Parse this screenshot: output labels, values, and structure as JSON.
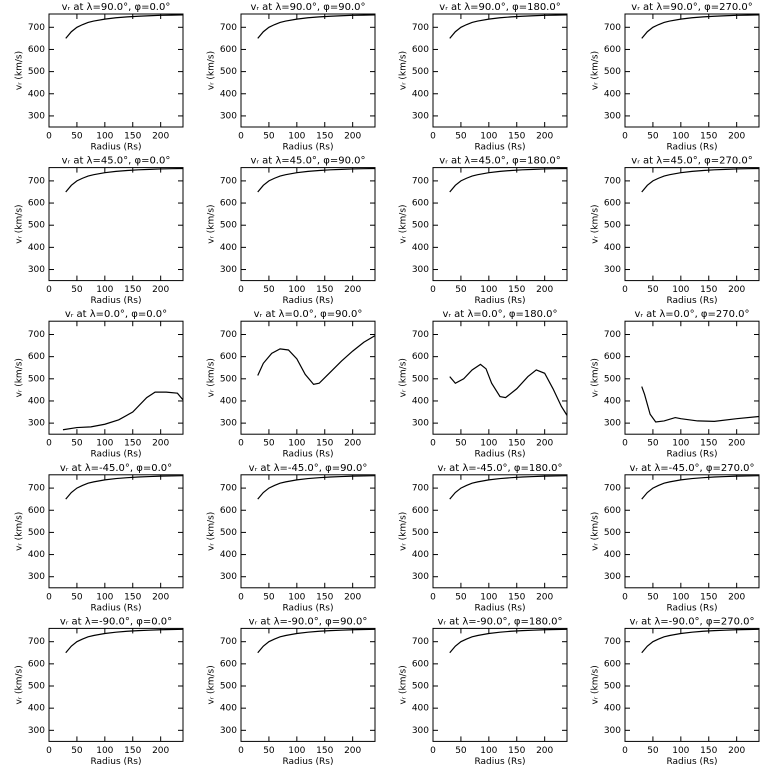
{
  "chart_data": [
    {
      "type": "line",
      "title": "vᵣ at λ=90.0°, φ=0.0°",
      "xlabel": "Radius (Rs)",
      "ylabel": "vᵣ (km/s)",
      "x": [
        30,
        40,
        50,
        60,
        70,
        80,
        100,
        120,
        140,
        160,
        180,
        200,
        220,
        240
      ],
      "values": [
        650,
        680,
        700,
        712,
        722,
        728,
        737,
        743,
        747,
        750,
        752,
        754,
        755,
        756
      ],
      "xlim": [
        0,
        240
      ],
      "ylim": [
        250,
        760
      ],
      "xticks": [
        0,
        50,
        100,
        150,
        200
      ],
      "yticks": [
        300,
        400,
        500,
        600,
        700
      ],
      "color": "#000000"
    },
    {
      "type": "line",
      "title": "vᵣ at λ=90.0°, φ=90.0°",
      "xlabel": "Radius (Rs)",
      "ylabel": "vᵣ (km/s)",
      "x": [
        30,
        40,
        50,
        60,
        70,
        80,
        100,
        120,
        140,
        160,
        180,
        200,
        220,
        240
      ],
      "values": [
        650,
        680,
        700,
        712,
        722,
        728,
        737,
        743,
        747,
        750,
        752,
        754,
        755,
        756
      ],
      "xlim": [
        0,
        240
      ],
      "ylim": [
        250,
        760
      ],
      "xticks": [
        0,
        50,
        100,
        150,
        200
      ],
      "yticks": [
        300,
        400,
        500,
        600,
        700
      ],
      "color": "#000000"
    },
    {
      "type": "line",
      "title": "vᵣ at λ=90.0°, φ=180.0°",
      "xlabel": "Radius (Rs)",
      "ylabel": "vᵣ (km/s)",
      "x": [
        30,
        40,
        50,
        60,
        70,
        80,
        100,
        120,
        140,
        160,
        180,
        200,
        220,
        240
      ],
      "values": [
        650,
        680,
        700,
        712,
        722,
        728,
        737,
        743,
        747,
        750,
        752,
        754,
        755,
        756
      ],
      "xlim": [
        0,
        240
      ],
      "ylim": [
        250,
        760
      ],
      "xticks": [
        0,
        50,
        100,
        150,
        200
      ],
      "yticks": [
        300,
        400,
        500,
        600,
        700
      ],
      "color": "#000000"
    },
    {
      "type": "line",
      "title": "vᵣ at λ=90.0°, φ=270.0°",
      "xlabel": "Radius (Rs)",
      "ylabel": "vᵣ (km/s)",
      "x": [
        30,
        40,
        50,
        60,
        70,
        80,
        100,
        120,
        140,
        160,
        180,
        200,
        220,
        240
      ],
      "values": [
        650,
        680,
        700,
        712,
        722,
        728,
        737,
        743,
        747,
        750,
        752,
        754,
        755,
        756
      ],
      "xlim": [
        0,
        240
      ],
      "ylim": [
        250,
        760
      ],
      "xticks": [
        0,
        50,
        100,
        150,
        200
      ],
      "yticks": [
        300,
        400,
        500,
        600,
        700
      ],
      "color": "#000000"
    },
    {
      "type": "line",
      "title": "vᵣ at λ=45.0°, φ=0.0°",
      "xlabel": "Radius (Rs)",
      "ylabel": "vᵣ (km/s)",
      "x": [
        30,
        40,
        50,
        60,
        70,
        80,
        100,
        120,
        140,
        160,
        180,
        200,
        220,
        240
      ],
      "values": [
        650,
        680,
        700,
        712,
        722,
        728,
        737,
        743,
        747,
        750,
        752,
        754,
        755,
        756
      ],
      "xlim": [
        0,
        240
      ],
      "ylim": [
        250,
        760
      ],
      "xticks": [
        0,
        50,
        100,
        150,
        200
      ],
      "yticks": [
        300,
        400,
        500,
        600,
        700
      ],
      "color": "#000000"
    },
    {
      "type": "line",
      "title": "vᵣ at λ=45.0°, φ=90.0°",
      "xlabel": "Radius (Rs)",
      "ylabel": "vᵣ (km/s)",
      "x": [
        30,
        40,
        50,
        60,
        70,
        80,
        100,
        120,
        140,
        160,
        180,
        200,
        220,
        240
      ],
      "values": [
        650,
        680,
        700,
        712,
        722,
        728,
        737,
        743,
        747,
        750,
        752,
        754,
        755,
        756
      ],
      "xlim": [
        0,
        240
      ],
      "ylim": [
        250,
        760
      ],
      "xticks": [
        0,
        50,
        100,
        150,
        200
      ],
      "yticks": [
        300,
        400,
        500,
        600,
        700
      ],
      "color": "#000000"
    },
    {
      "type": "line",
      "title": "vᵣ at λ=45.0°, φ=180.0°",
      "xlabel": "Radius (Rs)",
      "ylabel": "vᵣ (km/s)",
      "x": [
        30,
        40,
        50,
        60,
        70,
        80,
        100,
        120,
        140,
        160,
        180,
        200,
        220,
        240
      ],
      "values": [
        650,
        680,
        700,
        712,
        722,
        728,
        737,
        743,
        747,
        750,
        752,
        754,
        755,
        756
      ],
      "xlim": [
        0,
        240
      ],
      "ylim": [
        250,
        760
      ],
      "xticks": [
        0,
        50,
        100,
        150,
        200
      ],
      "yticks": [
        300,
        400,
        500,
        600,
        700
      ],
      "color": "#000000"
    },
    {
      "type": "line",
      "title": "vᵣ at λ=45.0°, φ=270.0°",
      "xlabel": "Radius (Rs)",
      "ylabel": "vᵣ (km/s)",
      "x": [
        30,
        40,
        50,
        60,
        70,
        80,
        100,
        120,
        140,
        160,
        180,
        200,
        220,
        240
      ],
      "values": [
        650,
        680,
        700,
        712,
        722,
        728,
        737,
        743,
        747,
        750,
        752,
        754,
        755,
        756
      ],
      "xlim": [
        0,
        240
      ],
      "ylim": [
        250,
        760
      ],
      "xticks": [
        0,
        50,
        100,
        150,
        200
      ],
      "yticks": [
        300,
        400,
        500,
        600,
        700
      ],
      "color": "#000000"
    },
    {
      "type": "line",
      "title": "vᵣ at λ=0.0°, φ=0.0°",
      "xlabel": "Radius (Rs)",
      "ylabel": "vᵣ (km/s)",
      "x": [
        25,
        50,
        75,
        100,
        125,
        150,
        175,
        190,
        210,
        230,
        240
      ],
      "values": [
        270,
        280,
        283,
        295,
        315,
        350,
        415,
        440,
        440,
        435,
        405
      ],
      "xlim": [
        0,
        240
      ],
      "ylim": [
        250,
        760
      ],
      "xticks": [
        0,
        50,
        100,
        150,
        200
      ],
      "yticks": [
        300,
        400,
        500,
        600,
        700
      ],
      "color": "#000000"
    },
    {
      "type": "line",
      "title": "vᵣ at λ=0.0°, φ=90.0°",
      "xlabel": "Radius (Rs)",
      "ylabel": "vᵣ (km/s)",
      "x": [
        30,
        40,
        55,
        70,
        85,
        100,
        115,
        130,
        140,
        160,
        180,
        200,
        220,
        240
      ],
      "values": [
        515,
        570,
        615,
        635,
        630,
        590,
        520,
        475,
        480,
        530,
        580,
        625,
        665,
        695
      ],
      "xlim": [
        0,
        240
      ],
      "ylim": [
        250,
        760
      ],
      "xticks": [
        0,
        50,
        100,
        150,
        200
      ],
      "yticks": [
        300,
        400,
        500,
        600,
        700
      ],
      "color": "#000000"
    },
    {
      "type": "line",
      "title": "vᵣ at λ=0.0°, φ=180.0°",
      "xlabel": "Radius (Rs)",
      "ylabel": "vᵣ (km/s)",
      "x": [
        30,
        40,
        55,
        70,
        85,
        95,
        105,
        120,
        130,
        150,
        170,
        185,
        200,
        215,
        230,
        240
      ],
      "values": [
        510,
        480,
        500,
        540,
        565,
        545,
        480,
        420,
        415,
        455,
        510,
        540,
        525,
        455,
        375,
        335
      ],
      "xlim": [
        0,
        240
      ],
      "ylim": [
        250,
        760
      ],
      "xticks": [
        0,
        50,
        100,
        150,
        200
      ],
      "yticks": [
        300,
        400,
        500,
        600,
        700
      ],
      "color": "#000000"
    },
    {
      "type": "line",
      "title": "vᵣ at λ=0.0°, φ=270.0°",
      "xlabel": "Radius (Rs)",
      "ylabel": "vᵣ (km/s)",
      "x": [
        30,
        35,
        45,
        55,
        70,
        90,
        100,
        130,
        160,
        200,
        240
      ],
      "values": [
        465,
        430,
        340,
        305,
        310,
        325,
        320,
        310,
        308,
        320,
        330
      ],
      "xlim": [
        0,
        240
      ],
      "ylim": [
        250,
        760
      ],
      "xticks": [
        0,
        50,
        100,
        150,
        200
      ],
      "yticks": [
        300,
        400,
        500,
        600,
        700
      ],
      "color": "#000000"
    },
    {
      "type": "line",
      "title": "vᵣ at λ=-45.0°, φ=0.0°",
      "xlabel": "Radius (Rs)",
      "ylabel": "vᵣ (km/s)",
      "x": [
        30,
        40,
        50,
        60,
        70,
        80,
        100,
        120,
        140,
        160,
        180,
        200,
        220,
        240
      ],
      "values": [
        650,
        680,
        700,
        712,
        722,
        728,
        737,
        743,
        747,
        750,
        752,
        754,
        755,
        756
      ],
      "xlim": [
        0,
        240
      ],
      "ylim": [
        250,
        760
      ],
      "xticks": [
        0,
        50,
        100,
        150,
        200
      ],
      "yticks": [
        300,
        400,
        500,
        600,
        700
      ],
      "color": "#000000"
    },
    {
      "type": "line",
      "title": "vᵣ at λ=-45.0°, φ=90.0°",
      "xlabel": "Radius (Rs)",
      "ylabel": "vᵣ (km/s)",
      "x": [
        30,
        40,
        50,
        60,
        70,
        80,
        100,
        120,
        140,
        160,
        180,
        200,
        220,
        240
      ],
      "values": [
        650,
        680,
        700,
        712,
        722,
        728,
        737,
        743,
        747,
        750,
        752,
        754,
        755,
        756
      ],
      "xlim": [
        0,
        240
      ],
      "ylim": [
        250,
        760
      ],
      "xticks": [
        0,
        50,
        100,
        150,
        200
      ],
      "yticks": [
        300,
        400,
        500,
        600,
        700
      ],
      "color": "#000000"
    },
    {
      "type": "line",
      "title": "vᵣ at λ=-45.0°, φ=180.0°",
      "xlabel": "Radius (Rs)",
      "ylabel": "vᵣ (km/s)",
      "x": [
        30,
        40,
        50,
        60,
        70,
        80,
        100,
        120,
        140,
        160,
        180,
        200,
        220,
        240
      ],
      "values": [
        650,
        680,
        700,
        712,
        722,
        728,
        737,
        743,
        747,
        750,
        752,
        754,
        755,
        756
      ],
      "xlim": [
        0,
        240
      ],
      "ylim": [
        250,
        760
      ],
      "xticks": [
        0,
        50,
        100,
        150,
        200
      ],
      "yticks": [
        300,
        400,
        500,
        600,
        700
      ],
      "color": "#000000"
    },
    {
      "type": "line",
      "title": "vᵣ at λ=-45.0°, φ=270.0°",
      "xlabel": "Radius (Rs)",
      "ylabel": "vᵣ (km/s)",
      "x": [
        30,
        40,
        50,
        60,
        70,
        80,
        100,
        120,
        140,
        160,
        180,
        200,
        220,
        240
      ],
      "values": [
        650,
        680,
        700,
        712,
        722,
        728,
        737,
        743,
        747,
        750,
        752,
        754,
        755,
        756
      ],
      "xlim": [
        0,
        240
      ],
      "ylim": [
        250,
        760
      ],
      "xticks": [
        0,
        50,
        100,
        150,
        200
      ],
      "yticks": [
        300,
        400,
        500,
        600,
        700
      ],
      "color": "#000000"
    },
    {
      "type": "line",
      "title": "vᵣ at λ=-90.0°, φ=0.0°",
      "xlabel": "Radius (Rs)",
      "ylabel": "vᵣ (km/s)",
      "x": [
        30,
        40,
        50,
        60,
        70,
        80,
        100,
        120,
        140,
        160,
        180,
        200,
        220,
        240
      ],
      "values": [
        650,
        680,
        700,
        712,
        722,
        728,
        737,
        743,
        747,
        750,
        752,
        754,
        755,
        756
      ],
      "xlim": [
        0,
        240
      ],
      "ylim": [
        250,
        760
      ],
      "xticks": [
        0,
        50,
        100,
        150,
        200
      ],
      "yticks": [
        300,
        400,
        500,
        600,
        700
      ],
      "color": "#000000"
    },
    {
      "type": "line",
      "title": "vᵣ at λ=-90.0°, φ=90.0°",
      "xlabel": "Radius (Rs)",
      "ylabel": "vᵣ (km/s)",
      "x": [
        30,
        40,
        50,
        60,
        70,
        80,
        100,
        120,
        140,
        160,
        180,
        200,
        220,
        240
      ],
      "values": [
        650,
        680,
        700,
        712,
        722,
        728,
        737,
        743,
        747,
        750,
        752,
        754,
        755,
        756
      ],
      "xlim": [
        0,
        240
      ],
      "ylim": [
        250,
        760
      ],
      "xticks": [
        0,
        50,
        100,
        150,
        200
      ],
      "yticks": [
        300,
        400,
        500,
        600,
        700
      ],
      "color": "#000000"
    },
    {
      "type": "line",
      "title": "vᵣ at λ=-90.0°, φ=180.0°",
      "xlabel": "Radius (Rs)",
      "ylabel": "vᵣ (km/s)",
      "x": [
        30,
        40,
        50,
        60,
        70,
        80,
        100,
        120,
        140,
        160,
        180,
        200,
        220,
        240
      ],
      "values": [
        650,
        680,
        700,
        712,
        722,
        728,
        737,
        743,
        747,
        750,
        752,
        754,
        755,
        756
      ],
      "xlim": [
        0,
        240
      ],
      "ylim": [
        250,
        760
      ],
      "xticks": [
        0,
        50,
        100,
        150,
        200
      ],
      "yticks": [
        300,
        400,
        500,
        600,
        700
      ],
      "color": "#000000"
    },
    {
      "type": "line",
      "title": "vᵣ at λ=-90.0°, φ=270.0°",
      "xlabel": "Radius (Rs)",
      "ylabel": "vᵣ (km/s)",
      "x": [
        30,
        40,
        50,
        60,
        70,
        80,
        100,
        120,
        140,
        160,
        180,
        200,
        220,
        240
      ],
      "values": [
        650,
        680,
        700,
        712,
        722,
        728,
        737,
        743,
        747,
        750,
        752,
        754,
        755,
        756
      ],
      "xlim": [
        0,
        240
      ],
      "ylim": [
        250,
        760
      ],
      "xticks": [
        0,
        50,
        100,
        150,
        200
      ],
      "yticks": [
        300,
        400,
        500,
        600,
        700
      ],
      "color": "#000000"
    }
  ]
}
